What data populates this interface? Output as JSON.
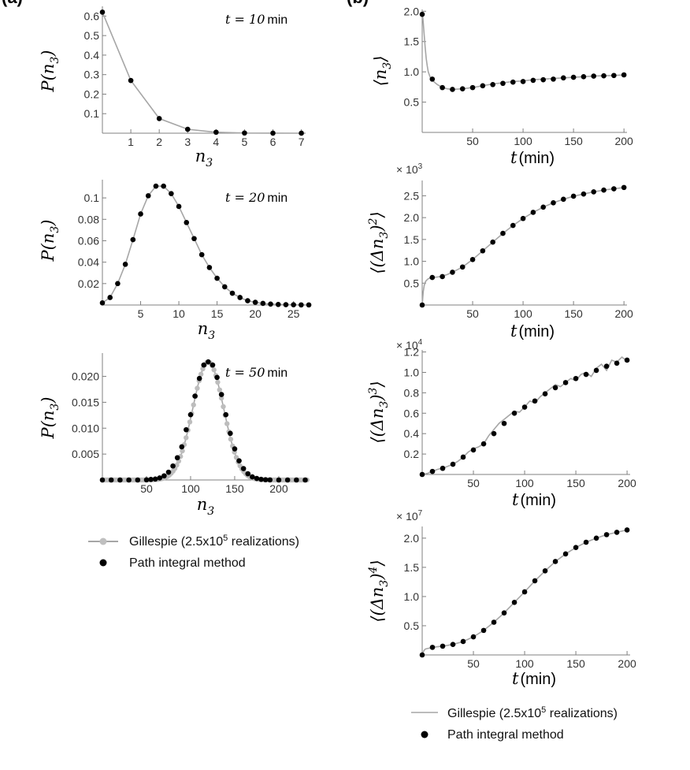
{
  "figure": {
    "panel_labels": [
      "(a)",
      "(b)"
    ],
    "colors": {
      "gillespie": "#a6a6a6",
      "path_integral": "#000000",
      "axis": "#808080"
    }
  },
  "legends": {
    "left": {
      "gillespie": "Gillespie (2.5x10",
      "gillespie_exp": "5",
      "gillespie_tail": " realizations)",
      "path": "Path integral method"
    },
    "right": {
      "gillespie": "Gillespie (2.5x10",
      "gillespie_exp": "5",
      "gillespie_tail": " realizations)",
      "path": "Path integral method"
    }
  },
  "chart_data": [
    {
      "id": "dist10",
      "type": "line",
      "xvar": "n",
      "yvar": "P(n",
      "ysub": "3",
      "xunit": "",
      "annotation": "t = 10",
      "annotation_unit": "min",
      "xlim": [
        0,
        7.15
      ],
      "ylim": [
        0,
        0.65
      ],
      "xticks": [
        1,
        2,
        3,
        4,
        5,
        6,
        7
      ],
      "yticks": [
        0.1,
        0.2,
        0.3,
        0.4,
        0.5,
        0.6
      ],
      "gillespie": {
        "x": [
          0,
          1,
          2,
          3,
          4,
          5,
          6,
          7
        ],
        "y": [
          0.62,
          0.27,
          0.075,
          0.02,
          0.005,
          0.001,
          0.0003,
          0.0001
        ]
      },
      "path_integral": {
        "x": [
          0,
          1,
          2,
          3,
          4,
          5,
          6,
          7
        ],
        "y": [
          0.62,
          0.27,
          0.075,
          0.02,
          0.005,
          0.001,
          0.0003,
          0.0001
        ]
      }
    },
    {
      "id": "dist20",
      "type": "line",
      "xvar": "n",
      "yvar": "P(n",
      "ysub": "3",
      "xunit": "",
      "annotation": "t = 20",
      "annotation_unit": "min",
      "xlim": [
        0,
        27.2
      ],
      "ylim": [
        0,
        0.117
      ],
      "xticks": [
        5,
        10,
        15,
        20,
        25
      ],
      "yticks": [
        0.02,
        0.04,
        0.06,
        0.08,
        0.1
      ],
      "gillespie": {
        "x": [
          0,
          1,
          2,
          3,
          4,
          5,
          6,
          7,
          8,
          9,
          10,
          11,
          12,
          13,
          14,
          15,
          16,
          17,
          18,
          19,
          20,
          21,
          22,
          23,
          24,
          25,
          26,
          27
        ],
        "y": [
          0.002,
          0.007,
          0.02,
          0.038,
          0.061,
          0.085,
          0.102,
          0.111,
          0.111,
          0.104,
          0.092,
          0.077,
          0.062,
          0.047,
          0.035,
          0.025,
          0.017,
          0.011,
          0.007,
          0.004,
          0.0025,
          0.0015,
          0.0009,
          0.0005,
          0.0003,
          0.0002,
          0.0001,
          0.0001
        ]
      },
      "path_integral": {
        "x": [
          0,
          1,
          2,
          3,
          4,
          5,
          6,
          7,
          8,
          9,
          10,
          11,
          12,
          13,
          14,
          15,
          16,
          17,
          18,
          19,
          20,
          21,
          22,
          23,
          24,
          25,
          26,
          27
        ],
        "y": [
          0.002,
          0.007,
          0.02,
          0.038,
          0.061,
          0.085,
          0.102,
          0.111,
          0.111,
          0.104,
          0.092,
          0.077,
          0.062,
          0.047,
          0.035,
          0.025,
          0.017,
          0.011,
          0.007,
          0.004,
          0.0025,
          0.0015,
          0.0009,
          0.0005,
          0.0003,
          0.0002,
          0.0001,
          0.0001
        ]
      }
    },
    {
      "id": "dist50",
      "type": "line",
      "xvar": "n",
      "yvar": "P(n",
      "ysub": "3",
      "xunit": "",
      "annotation": "t = 50",
      "annotation_unit": "min",
      "xlim": [
        0,
        234
      ],
      "ylim": [
        0,
        0.0245
      ],
      "xticks": [
        50,
        100,
        150,
        200
      ],
      "yticks": [
        0.005,
        0.01,
        0.015,
        0.02
      ],
      "yticklabels": [
        "0.005",
        "0.010",
        "0.015",
        "0.020"
      ],
      "gauss": {
        "mean": 120,
        "sd": 17.5,
        "peak": 0.0228,
        "points": 111,
        "xmin": 0,
        "xmax": 232
      },
      "path_integral": {
        "x": [
          0,
          10,
          20,
          30,
          40,
          50,
          55,
          60,
          65,
          70,
          75,
          80,
          85,
          90,
          95,
          100,
          105,
          110,
          115,
          120,
          125,
          130,
          135,
          140,
          145,
          150,
          155,
          160,
          165,
          170,
          175,
          180,
          185,
          190,
          200,
          210,
          220,
          230
        ],
        "y": [
          0,
          0,
          0,
          0,
          0,
          3e-05,
          0.0001,
          0.00018,
          0.0004,
          0.0008,
          0.0015,
          0.0027,
          0.0043,
          0.0064,
          0.0097,
          0.0126,
          0.0162,
          0.0196,
          0.0222,
          0.0228,
          0.0222,
          0.0198,
          0.0165,
          0.0126,
          0.009,
          0.006,
          0.0037,
          0.0022,
          0.0012,
          0.0006,
          0.0003,
          0.00012,
          5e-05,
          2e-05,
          0,
          0,
          0,
          0
        ]
      }
    },
    {
      "id": "mean",
      "type": "line",
      "xvar": "t",
      "yvar": "⟨n",
      "ysub": "3",
      "yclose": "⟩",
      "xunit": "(min)",
      "xlim": [
        0,
        203
      ],
      "ylim": [
        0,
        2.03
      ],
      "xticks": [
        50,
        100,
        150,
        200
      ],
      "yticks": [
        0.5,
        1.0,
        1.5,
        2.0
      ],
      "yticklabels": [
        "0.5",
        "1.0",
        "1.5",
        "2.0"
      ],
      "gillespie": {
        "x": [
          0,
          1,
          2,
          3,
          4,
          5,
          6,
          8,
          10,
          12,
          15,
          18,
          20,
          25,
          30,
          35,
          40,
          50,
          60,
          70,
          80,
          90,
          100,
          110,
          120,
          130,
          140,
          150,
          160,
          170,
          180,
          190,
          200
        ],
        "y": [
          2.0,
          1.82,
          1.6,
          1.4,
          1.22,
          1.1,
          1.0,
          0.91,
          0.87,
          0.83,
          0.79,
          0.76,
          0.74,
          0.72,
          0.71,
          0.715,
          0.72,
          0.74,
          0.77,
          0.8,
          0.82,
          0.84,
          0.85,
          0.87,
          0.88,
          0.89,
          0.9,
          0.91,
          0.92,
          0.93,
          0.935,
          0.94,
          0.95
        ]
      },
      "path_integral": {
        "x": [
          0,
          10,
          20,
          30,
          40,
          50,
          60,
          70,
          80,
          90,
          100,
          110,
          120,
          130,
          140,
          150,
          160,
          170,
          180,
          190,
          200
        ],
        "y": [
          1.95,
          0.88,
          0.74,
          0.71,
          0.72,
          0.74,
          0.77,
          0.79,
          0.81,
          0.83,
          0.84,
          0.86,
          0.87,
          0.88,
          0.9,
          0.91,
          0.92,
          0.93,
          0.935,
          0.94,
          0.95
        ]
      }
    },
    {
      "id": "var2",
      "type": "line",
      "xvar": "t",
      "yvar": "⟨(Δn",
      "ysub": "3",
      "yclose": ")",
      "ysup": "2",
      "yclose2": "⟩",
      "xunit": "(min)",
      "multiplier": "× 10",
      "multiplier_exp": "3",
      "xlim": [
        0,
        203
      ],
      "ylim": [
        0,
        2.85
      ],
      "xticks": [
        50,
        100,
        150,
        200
      ],
      "yticks": [
        0.5,
        1.0,
        1.5,
        2.0,
        2.5
      ],
      "yticklabels": [
        "0.5",
        "1.0",
        "1.5",
        "2.0",
        "2.5"
      ],
      "gillespie": {
        "x": [
          0,
          1,
          2,
          3,
          4,
          5,
          6,
          8,
          10,
          15,
          20,
          25,
          30,
          40,
          50,
          60,
          70,
          80,
          90,
          100,
          110,
          120,
          130,
          140,
          150,
          160,
          170,
          180,
          190,
          200
        ],
        "y": [
          0,
          0.3,
          0.45,
          0.52,
          0.56,
          0.58,
          0.6,
          0.62,
          0.63,
          0.64,
          0.66,
          0.7,
          0.75,
          0.87,
          1.04,
          1.24,
          1.44,
          1.64,
          1.82,
          1.98,
          2.12,
          2.24,
          2.34,
          2.42,
          2.49,
          2.54,
          2.59,
          2.63,
          2.66,
          2.69
        ]
      },
      "path_integral": {
        "x": [
          0,
          10,
          20,
          30,
          40,
          50,
          60,
          70,
          80,
          90,
          100,
          110,
          120,
          130,
          140,
          150,
          160,
          170,
          180,
          190,
          200
        ],
        "y": [
          0,
          0.63,
          0.65,
          0.75,
          0.87,
          1.04,
          1.24,
          1.44,
          1.64,
          1.82,
          1.98,
          2.12,
          2.24,
          2.34,
          2.42,
          2.49,
          2.54,
          2.59,
          2.63,
          2.66,
          2.69
        ]
      }
    },
    {
      "id": "var3",
      "type": "line",
      "xvar": "t",
      "yvar": "⟨(Δn",
      "ysub": "3",
      "yclose": ")",
      "ysup": "3",
      "yclose2": "⟩",
      "xunit": "(min)",
      "multiplier": "× 10",
      "multiplier_exp": "4",
      "xlim": [
        0,
        203
      ],
      "ylim": [
        0,
        1.22
      ],
      "xticks": [
        50,
        100,
        150,
        200
      ],
      "yticks": [
        0.2,
        0.4,
        0.6,
        0.8,
        1.0,
        1.2
      ],
      "yticklabels": [
        "0.2",
        "0.4",
        "0.6",
        "0.8",
        "1.0",
        "1.2"
      ],
      "gillespie": {
        "x": [
          0,
          5,
          10,
          15,
          20,
          25,
          30,
          35,
          40,
          45,
          50,
          55,
          60,
          65,
          70,
          75,
          80,
          85,
          90,
          95,
          100,
          105,
          110,
          115,
          120,
          125,
          130,
          135,
          140,
          145,
          150,
          155,
          160,
          165,
          170,
          175,
          180,
          185,
          190,
          195,
          200
        ],
        "y": [
          0,
          0.01,
          0.03,
          0.05,
          0.06,
          0.08,
          0.1,
          0.13,
          0.17,
          0.22,
          0.25,
          0.27,
          0.3,
          0.38,
          0.44,
          0.5,
          0.54,
          0.58,
          0.62,
          0.61,
          0.66,
          0.72,
          0.7,
          0.76,
          0.8,
          0.84,
          0.88,
          0.86,
          0.9,
          0.94,
          0.92,
          0.98,
          1.0,
          0.96,
          1.04,
          1.08,
          1.02,
          1.12,
          1.1,
          1.15,
          1.11
        ]
      },
      "path_integral": {
        "x": [
          0,
          10,
          20,
          30,
          40,
          50,
          60,
          70,
          80,
          90,
          100,
          110,
          120,
          130,
          140,
          150,
          160,
          170,
          180,
          190,
          200
        ],
        "y": [
          0,
          0.03,
          0.06,
          0.1,
          0.17,
          0.24,
          0.3,
          0.4,
          0.5,
          0.6,
          0.66,
          0.72,
          0.79,
          0.85,
          0.9,
          0.94,
          0.98,
          1.02,
          1.06,
          1.09,
          1.12
        ]
      }
    },
    {
      "id": "var4",
      "type": "line",
      "xvar": "t",
      "yvar": "⟨(Δn",
      "ysub": "3",
      "yclose": ")",
      "ysup": "4",
      "yclose2": "⟩",
      "xunit": "(min)",
      "multiplier": "× 10",
      "multiplier_exp": "7",
      "xlim": [
        0,
        203
      ],
      "ylim": [
        0,
        2.2
      ],
      "xticks": [
        50,
        100,
        150,
        200
      ],
      "yticks": [
        0.5,
        1.0,
        1.5,
        2.0
      ],
      "yticklabels": [
        "0.5",
        "1.0",
        "1.5",
        "2.0"
      ],
      "gillespie": {
        "x": [
          0,
          1,
          2,
          3,
          5,
          8,
          10,
          15,
          20,
          30,
          40,
          50,
          60,
          70,
          80,
          90,
          100,
          110,
          120,
          130,
          140,
          150,
          160,
          170,
          180,
          190,
          200
        ],
        "y": [
          0,
          0.05,
          0.08,
          0.1,
          0.11,
          0.12,
          0.13,
          0.14,
          0.15,
          0.18,
          0.23,
          0.31,
          0.42,
          0.56,
          0.72,
          0.9,
          1.08,
          1.27,
          1.44,
          1.6,
          1.73,
          1.84,
          1.93,
          2.0,
          2.06,
          2.1,
          2.14
        ]
      },
      "path_integral": {
        "x": [
          0,
          10,
          20,
          30,
          40,
          50,
          60,
          70,
          80,
          90,
          100,
          110,
          120,
          130,
          140,
          150,
          160,
          170,
          180,
          190,
          200
        ],
        "y": [
          0,
          0.13,
          0.15,
          0.18,
          0.23,
          0.31,
          0.42,
          0.56,
          0.72,
          0.9,
          1.08,
          1.27,
          1.44,
          1.6,
          1.73,
          1.84,
          1.93,
          2.0,
          2.06,
          2.1,
          2.14
        ]
      }
    }
  ]
}
